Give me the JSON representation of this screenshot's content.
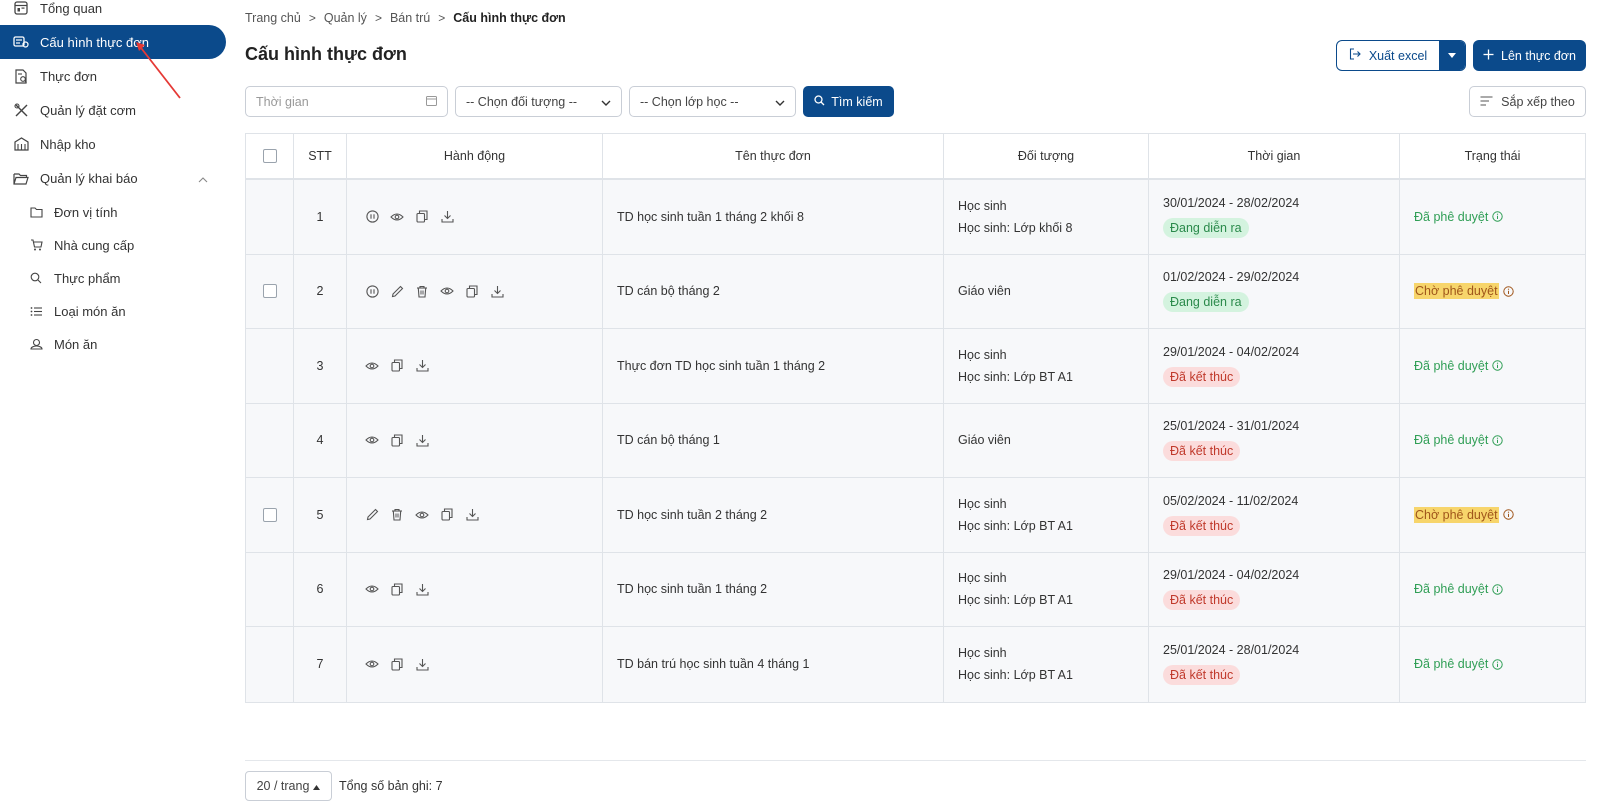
{
  "sidebar": {
    "items": [
      {
        "label": "Tổng quan",
        "icon": "dashboard-icon"
      },
      {
        "label": "Cấu hình thực đơn",
        "icon": "menu-config-icon",
        "active": true
      },
      {
        "label": "Thực đơn",
        "icon": "menu-doc-icon"
      },
      {
        "label": "Quản lý đặt cơm",
        "icon": "utensils-icon"
      },
      {
        "label": "Nhập kho",
        "icon": "warehouse-icon"
      },
      {
        "label": "Quản lý khai báo",
        "icon": "folder-open-icon"
      }
    ],
    "sub_items": [
      {
        "label": "Đơn vị tính",
        "icon": "folder-icon"
      },
      {
        "label": "Nhà cung cấp",
        "icon": "cart-icon"
      },
      {
        "label": "Thực phẩm",
        "icon": "search-icon"
      },
      {
        "label": "Loại món ăn",
        "icon": "list-icon"
      },
      {
        "label": "Món ăn",
        "icon": "dish-icon"
      }
    ]
  },
  "breadcrumb": [
    "Trang chủ",
    "Quản lý",
    "Bán trú",
    "Cấu hình thực đơn"
  ],
  "page_title": "Cấu hình thực đơn",
  "toolbar": {
    "export_label": "Xuất excel",
    "create_label": "Lên thực đơn",
    "time_placeholder": "Thời gian",
    "object_select": "-- Chọn đối tượng --",
    "class_select": "-- Chọn lớp học --",
    "search_label": "Tìm kiếm",
    "sort_label": "Sắp xếp theo"
  },
  "table": {
    "headers": [
      "STT",
      "Hành động",
      "Tên thực đơn",
      "Đối tượng",
      "Thời gian",
      "Trạng thái"
    ],
    "rows": [
      {
        "stt": "1",
        "checkbox": false,
        "actions": [
          "pause-icon",
          "eye-icon",
          "copy-icon",
          "download-icon"
        ],
        "name": "TD học sinh tuần 1 tháng 2 khối 8",
        "object": [
          "Học sinh",
          "Học sinh: Lớp khối 8"
        ],
        "time": "30/01/2024 - 28/02/2024",
        "tag": "Đang diễn ra",
        "tag_type": "ongoing",
        "status": "Đã phê duyệt",
        "status_type": "approved"
      },
      {
        "stt": "2",
        "checkbox": true,
        "actions": [
          "pause-icon",
          "edit-icon",
          "trash-icon",
          "eye-icon",
          "copy-icon",
          "download-icon"
        ],
        "name": "TD cán bộ tháng 2",
        "object": [
          "Giáo viên"
        ],
        "time": "01/02/2024 - 29/02/2024",
        "tag": "Đang diễn ra",
        "tag_type": "ongoing",
        "status": "Chờ phê duyệt",
        "status_type": "pending"
      },
      {
        "stt": "3",
        "checkbox": false,
        "actions": [
          "eye-icon",
          "copy-icon",
          "download-icon"
        ],
        "name": "Thực đơn TD học sinh tuần 1 tháng 2",
        "object": [
          "Học sinh",
          "Học sinh: Lớp BT A1"
        ],
        "time": "29/01/2024 - 04/02/2024",
        "tag": "Đã kết thúc",
        "tag_type": "ended",
        "status": "Đã phê duyệt",
        "status_type": "approved"
      },
      {
        "stt": "4",
        "checkbox": false,
        "actions": [
          "eye-icon",
          "copy-icon",
          "download-icon"
        ],
        "name": "TD cán bộ tháng 1",
        "object": [
          "Giáo viên"
        ],
        "time": "25/01/2024 - 31/01/2024",
        "tag": "Đã kết thúc",
        "tag_type": "ended",
        "status": "Đã phê duyệt",
        "status_type": "approved"
      },
      {
        "stt": "5",
        "checkbox": true,
        "actions": [
          "edit-icon",
          "trash-icon",
          "eye-icon",
          "copy-icon",
          "download-icon"
        ],
        "name": "TD học sinh tuần 2 tháng 2",
        "object": [
          "Học sinh",
          "Học sinh: Lớp BT A1"
        ],
        "time": "05/02/2024 - 11/02/2024",
        "tag": "Đã kết thúc",
        "tag_type": "ended",
        "status": "Chờ phê duyệt",
        "status_type": "pending"
      },
      {
        "stt": "6",
        "checkbox": false,
        "actions": [
          "eye-icon",
          "copy-icon",
          "download-icon"
        ],
        "name": "TD học sinh tuần 1 tháng 2",
        "object": [
          "Học sinh",
          "Học sinh: Lớp BT A1"
        ],
        "time": "29/01/2024 - 04/02/2024",
        "tag": "Đã kết thúc",
        "tag_type": "ended",
        "status": "Đã phê duyệt",
        "status_type": "approved"
      },
      {
        "stt": "7",
        "checkbox": false,
        "actions": [
          "eye-icon",
          "copy-icon",
          "download-icon"
        ],
        "name": "TD bán trú học sinh tuần 4 tháng 1",
        "object": [
          "Học sinh",
          "Học sinh: Lớp BT A1"
        ],
        "time": "25/01/2024 - 28/01/2024",
        "tag": "Đã kết thúc",
        "tag_type": "ended",
        "status": "Đã phê duyệt",
        "status_type": "approved"
      }
    ]
  },
  "pagination": {
    "page_size": "20 / trang",
    "total": "Tổng số bản ghi: 7"
  },
  "colors": {
    "primary": "#0b4a8b",
    "approved": "#2f9e55",
    "pending_bg": "#f7d56b",
    "ongoing_bg": "#d4f3df",
    "ended_bg": "#fbdcdc",
    "annotation_arrow": "#e53935"
  }
}
